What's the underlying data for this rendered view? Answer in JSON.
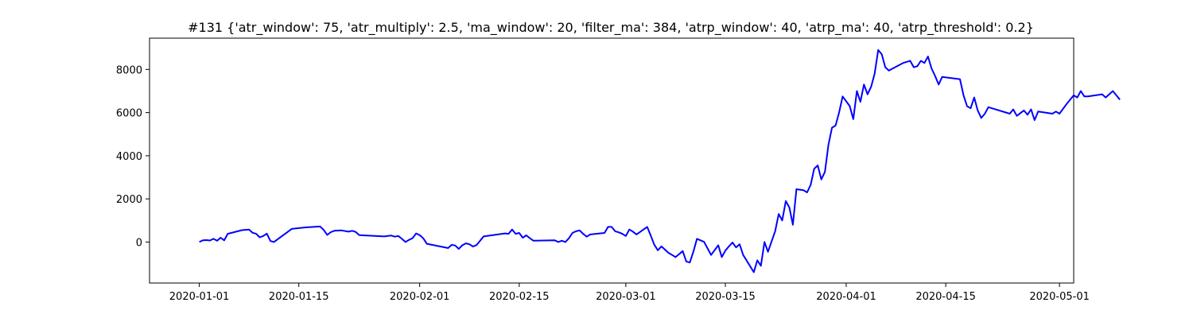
{
  "chart_data": {
    "type": "line",
    "title": "#131 {'atr_window': 75, 'atr_multiply': 2.5, 'ma_window': 20, 'filter_ma': 384, 'atrp_window': 40, 'atrp_ma': 40, 'atrp_threshold': 0.2}",
    "xlabel": "",
    "ylabel": "",
    "xlim": [
      "2019-12-25",
      "2020-05-03"
    ],
    "ylim": [
      -1900,
      9450
    ],
    "x_ticks": [
      "2020-01-01",
      "2020-01-15",
      "2020-02-01",
      "2020-02-15",
      "2020-03-01",
      "2020-03-15",
      "2020-04-01",
      "2020-04-15",
      "2020-05-01"
    ],
    "y_ticks": [
      0,
      2000,
      4000,
      6000,
      8000
    ],
    "grid": false,
    "line_color": "#0000ff",
    "series": [
      {
        "values": [
          [
            "2020-01-01",
            0
          ],
          [
            "2020-01-01 12:00",
            80
          ],
          [
            "2020-01-02",
            90
          ],
          [
            "2020-01-02 12:00",
            70
          ],
          [
            "2020-01-03",
            150
          ],
          [
            "2020-01-03 12:00",
            60
          ],
          [
            "2020-01-04",
            200
          ],
          [
            "2020-01-04 12:00",
            80
          ],
          [
            "2020-01-05",
            380
          ],
          [
            "2020-01-07",
            550
          ],
          [
            "2020-01-08",
            580
          ],
          [
            "2020-01-08 12:00",
            430
          ],
          [
            "2020-01-09",
            380
          ],
          [
            "2020-01-09 12:00",
            220
          ],
          [
            "2020-01-10",
            280
          ],
          [
            "2020-01-10 12:00",
            390
          ],
          [
            "2020-01-11",
            50
          ],
          [
            "2020-01-11 12:00",
            0
          ],
          [
            "2020-01-14",
            610
          ],
          [
            "2020-01-16",
            680
          ],
          [
            "2020-01-18",
            720
          ],
          [
            "2020-01-18 12:00",
            560
          ],
          [
            "2020-01-19",
            330
          ],
          [
            "2020-01-19 12:00",
            460
          ],
          [
            "2020-01-20",
            520
          ],
          [
            "2020-01-21",
            540
          ],
          [
            "2020-01-22",
            480
          ],
          [
            "2020-01-22 12:00",
            520
          ],
          [
            "2020-01-23",
            470
          ],
          [
            "2020-01-23 12:00",
            320
          ],
          [
            "2020-01-27",
            260
          ],
          [
            "2020-01-28",
            300
          ],
          [
            "2020-01-28 12:00",
            250
          ],
          [
            "2020-01-29",
            280
          ],
          [
            "2020-01-29 12:00",
            150
          ],
          [
            "2020-01-30",
            0
          ],
          [
            "2020-01-30 12:00",
            100
          ],
          [
            "2020-01-31",
            180
          ],
          [
            "2020-01-31 12:00",
            400
          ],
          [
            "2020-02-01",
            320
          ],
          [
            "2020-02-01 12:00",
            180
          ],
          [
            "2020-02-02",
            -80
          ],
          [
            "2020-02-05",
            -280
          ],
          [
            "2020-02-05 12:00",
            -130
          ],
          [
            "2020-02-06",
            -160
          ],
          [
            "2020-02-06 12:00",
            -320
          ],
          [
            "2020-02-07",
            -150
          ],
          [
            "2020-02-07 12:00",
            -60
          ],
          [
            "2020-02-08",
            -100
          ],
          [
            "2020-02-08 12:00",
            -210
          ],
          [
            "2020-02-09",
            -140
          ],
          [
            "2020-02-10",
            260
          ],
          [
            "2020-02-13",
            400
          ],
          [
            "2020-02-13 12:00",
            380
          ],
          [
            "2020-02-14",
            580
          ],
          [
            "2020-02-14 12:00",
            380
          ],
          [
            "2020-02-15",
            420
          ],
          [
            "2020-02-15 12:00",
            200
          ],
          [
            "2020-02-16",
            310
          ],
          [
            "2020-02-16 12:00",
            180
          ],
          [
            "2020-02-17",
            60
          ],
          [
            "2020-02-20",
            80
          ],
          [
            "2020-02-20 12:00",
            0
          ],
          [
            "2020-02-21",
            60
          ],
          [
            "2020-02-21 12:00",
            0
          ],
          [
            "2020-02-22",
            180
          ],
          [
            "2020-02-22 12:00",
            420
          ],
          [
            "2020-02-23",
            500
          ],
          [
            "2020-02-23 12:00",
            540
          ],
          [
            "2020-02-24",
            380
          ],
          [
            "2020-02-24 12:00",
            250
          ],
          [
            "2020-02-25",
            350
          ],
          [
            "2020-02-27",
            420
          ],
          [
            "2020-02-27 12:00",
            700
          ],
          [
            "2020-02-28",
            700
          ],
          [
            "2020-02-28 12:00",
            500
          ],
          [
            "2020-02-29",
            450
          ],
          [
            "2020-02-29 12:00",
            380
          ],
          [
            "2020-03-01",
            280
          ],
          [
            "2020-03-01 12:00",
            580
          ],
          [
            "2020-03-02",
            480
          ],
          [
            "2020-03-02 12:00",
            350
          ],
          [
            "2020-03-04",
            700
          ],
          [
            "2020-03-04 12:00",
            300
          ],
          [
            "2020-03-05",
            -120
          ],
          [
            "2020-03-05 12:00",
            -380
          ],
          [
            "2020-03-06",
            -200
          ],
          [
            "2020-03-07",
            -500
          ],
          [
            "2020-03-07 12:00",
            -600
          ],
          [
            "2020-03-08",
            -700
          ],
          [
            "2020-03-09",
            -420
          ],
          [
            "2020-03-09 12:00",
            -900
          ],
          [
            "2020-03-10",
            -950
          ],
          [
            "2020-03-10 12:00",
            -450
          ],
          [
            "2020-03-11",
            150
          ],
          [
            "2020-03-12",
            10
          ],
          [
            "2020-03-13",
            -600
          ],
          [
            "2020-03-14",
            -150
          ],
          [
            "2020-03-14 12:00",
            -700
          ],
          [
            "2020-03-15",
            -400
          ],
          [
            "2020-03-15 12:00",
            -200
          ],
          [
            "2020-03-16",
            -20
          ],
          [
            "2020-03-16 12:00",
            -250
          ],
          [
            "2020-03-17",
            -100
          ],
          [
            "2020-03-17 12:00",
            -600
          ],
          [
            "2020-03-19",
            -1400
          ],
          [
            "2020-03-19 12:00",
            -850
          ],
          [
            "2020-03-20",
            -1100
          ],
          [
            "2020-03-20 12:00",
            0
          ],
          [
            "2020-03-21",
            -450
          ],
          [
            "2020-03-22",
            500
          ],
          [
            "2020-03-22 12:00",
            1300
          ],
          [
            "2020-03-23",
            1000
          ],
          [
            "2020-03-23 12:00",
            1900
          ],
          [
            "2020-03-24",
            1600
          ],
          [
            "2020-03-24 12:00",
            800
          ],
          [
            "2020-03-25",
            2450
          ],
          [
            "2020-03-26",
            2400
          ],
          [
            "2020-03-26 12:00",
            2300
          ],
          [
            "2020-03-27",
            2650
          ],
          [
            "2020-03-27 12:00",
            3400
          ],
          [
            "2020-03-28",
            3550
          ],
          [
            "2020-03-28 12:00",
            2900
          ],
          [
            "2020-03-29",
            3250
          ],
          [
            "2020-03-29 12:00",
            4500
          ],
          [
            "2020-03-30",
            5300
          ],
          [
            "2020-03-30 12:00",
            5400
          ],
          [
            "2020-03-31",
            6000
          ],
          [
            "2020-03-31 12:00",
            6750
          ],
          [
            "2020-04-01 12:00",
            6300
          ],
          [
            "2020-04-02",
            5700
          ],
          [
            "2020-04-02 12:00",
            7000
          ],
          [
            "2020-04-03",
            6500
          ],
          [
            "2020-04-03 12:00",
            7300
          ],
          [
            "2020-04-04",
            6850
          ],
          [
            "2020-04-04 12:00",
            7200
          ],
          [
            "2020-04-05",
            7800
          ],
          [
            "2020-04-05 12:00",
            8900
          ],
          [
            "2020-04-06",
            8700
          ],
          [
            "2020-04-06 12:00",
            8100
          ],
          [
            "2020-04-07",
            7950
          ],
          [
            "2020-04-09",
            8300
          ],
          [
            "2020-04-10",
            8400
          ],
          [
            "2020-04-10 12:00",
            8100
          ],
          [
            "2020-04-11",
            8150
          ],
          [
            "2020-04-11 12:00",
            8400
          ],
          [
            "2020-04-12",
            8300
          ],
          [
            "2020-04-12 12:00",
            8600
          ],
          [
            "2020-04-13",
            8050
          ],
          [
            "2020-04-13 12:00",
            7700
          ],
          [
            "2020-04-14",
            7300
          ],
          [
            "2020-04-14 12:00",
            7650
          ],
          [
            "2020-04-17",
            7550
          ],
          [
            "2020-04-17 12:00",
            6800
          ],
          [
            "2020-04-18",
            6300
          ],
          [
            "2020-04-18 12:00",
            6200
          ],
          [
            "2020-04-19",
            6700
          ],
          [
            "2020-04-19 12:00",
            6100
          ],
          [
            "2020-04-20",
            5750
          ],
          [
            "2020-04-20 12:00",
            5950
          ],
          [
            "2020-04-21",
            6250
          ],
          [
            "2020-04-24",
            5950
          ],
          [
            "2020-04-24 12:00",
            6150
          ],
          [
            "2020-04-25",
            5850
          ],
          [
            "2020-04-26",
            6100
          ],
          [
            "2020-04-26 12:00",
            5900
          ],
          [
            "2020-04-27",
            6150
          ],
          [
            "2020-04-27 12:00",
            5650
          ],
          [
            "2020-04-28",
            6050
          ],
          [
            "2020-04-30",
            5950
          ],
          [
            "2020-04-30 12:00",
            6050
          ],
          [
            "2020-05-01",
            5950
          ],
          [
            "2020-05-02",
            6400
          ],
          [
            "2020-05-03",
            6800
          ],
          [
            "2020-05-03 12:00",
            6700
          ],
          [
            "2020-05-04",
            7000
          ],
          [
            "2020-05-04 12:00",
            6750
          ],
          [
            "2020-05-05",
            6750
          ],
          [
            "2020-05-07",
            6850
          ],
          [
            "2020-05-07 12:00",
            6700
          ],
          [
            "2020-05-08",
            6850
          ],
          [
            "2020-05-08 12:00",
            7000
          ],
          [
            "2020-05-09",
            6800
          ],
          [
            "2020-05-09 12:00",
            6600
          ]
        ]
      }
    ]
  }
}
